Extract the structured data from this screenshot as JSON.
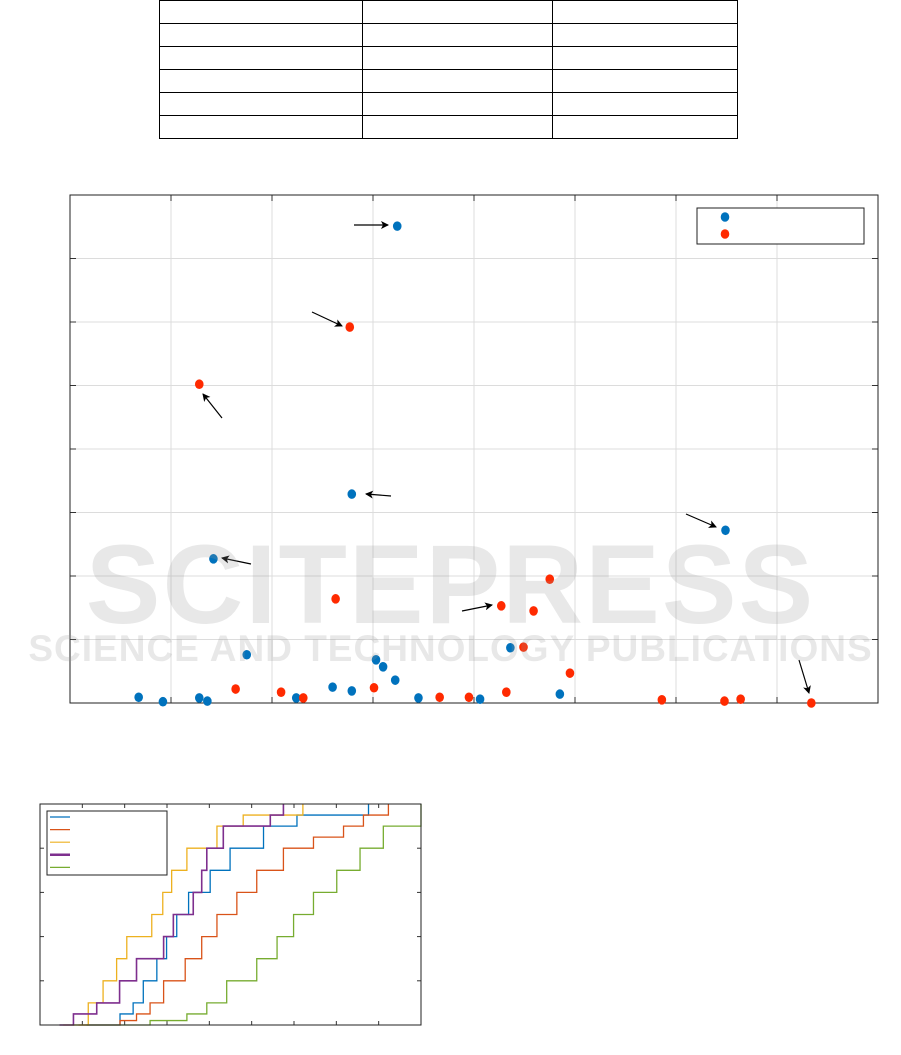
{
  "watermark": {
    "title": "SCITEPRESS",
    "subtitle": "SCIENCE AND TECHNOLOGY PUBLICATIONS"
  },
  "chart_data": [
    {
      "type": "scatter",
      "xlim": [
        0,
        8
      ],
      "ylim": [
        0,
        8
      ],
      "grid": true,
      "legend": "top-right",
      "colors": {
        "series1": "#0072BD",
        "series2": "#FF2A00"
      },
      "series": [
        {
          "x": [
            3.24,
            2.79,
            6.49,
            1.42,
            1.75,
            3.03,
            3.1,
            3.22,
            0.68,
            0.92,
            1.28,
            1.36,
            2.24,
            2.6,
            2.79,
            3.45,
            4.06,
            4.36,
            4.85
          ],
          "y": [
            7.51,
            3.29,
            2.72,
            2.27,
            0.76,
            0.68,
            0.57,
            0.36,
            0.09,
            0.02,
            0.08,
            0.03,
            0.08,
            0.25,
            0.19,
            0.08,
            0.06,
            0.87,
            0.14
          ]
        },
        {
          "x": [
            1.28,
            2.77,
            2.63,
            4.27,
            4.59,
            4.75,
            4.49,
            4.95,
            1.64,
            2.09,
            2.31,
            3.01,
            3.66,
            3.95,
            4.32,
            5.86,
            6.48,
            6.64,
            7.34
          ],
          "y": [
            5.02,
            5.92,
            1.64,
            1.53,
            1.45,
            1.95,
            0.88,
            0.47,
            0.22,
            0.17,
            0.08,
            0.24,
            0.09,
            0.09,
            0.17,
            0.05,
            0.03,
            0.06,
            0.0
          ]
        }
      ]
    },
    {
      "type": "line",
      "xlim": [
        0,
        9
      ],
      "ylim": [
        0,
        1
      ],
      "grid": false,
      "legend": "top-left",
      "series": [
        {
          "color": "#0072BD",
          "y": [
            0,
            0.05,
            0.1,
            0.2,
            0.3,
            0.4,
            0.5,
            0.6,
            0.7,
            0.8,
            0.9,
            0.95,
            1.0
          ],
          "x": [
            1.1,
            1.89,
            2.2,
            2.44,
            2.76,
            2.99,
            3.23,
            3.51,
            4.02,
            4.49,
            5.28,
            6.07,
            7.76
          ]
        },
        {
          "color": "#D95319",
          "y": [
            0,
            0.02,
            0.05,
            0.1,
            0.2,
            0.3,
            0.4,
            0.5,
            0.6,
            0.7,
            0.8,
            0.85,
            0.9,
            0.95,
            1.0
          ],
          "x": [
            0.91,
            1.89,
            2.28,
            2.6,
            2.92,
            3.43,
            3.82,
            4.18,
            4.65,
            5.12,
            5.75,
            6.46,
            7.17,
            7.64,
            8.23
          ]
        },
        {
          "color": "#EDB120",
          "y": [
            0,
            0.1,
            0.2,
            0.3,
            0.4,
            0.5,
            0.6,
            0.7,
            0.8,
            0.9,
            0.95,
            1.0
          ],
          "x": [
            0.55,
            1.14,
            1.49,
            1.81,
            2.05,
            2.64,
            2.9,
            3.11,
            3.47,
            4.18,
            4.8,
            6.21
          ]
        },
        {
          "color": "#7E2F8E",
          "y": [
            0,
            0.05,
            0.1,
            0.2,
            0.3,
            0.4,
            0.5,
            0.6,
            0.7,
            0.8,
            0.9,
            0.95,
            1.0
          ],
          "x": [
            0.46,
            0.79,
            1.34,
            1.88,
            2.28,
            2.92,
            3.15,
            3.62,
            3.82,
            3.94,
            4.33,
            5.44,
            5.75
          ]
        },
        {
          "color": "#77AC30",
          "y": [
            0,
            0.02,
            0.05,
            0.1,
            0.2,
            0.3,
            0.4,
            0.5,
            0.6,
            0.7,
            0.8,
            0.9,
            1.0
          ],
          "x": [
            0.79,
            2.6,
            3.47,
            3.94,
            4.41,
            5.12,
            5.6,
            5.99,
            6.46,
            7.01,
            7.56,
            8.11,
            9.0
          ]
        }
      ]
    }
  ]
}
